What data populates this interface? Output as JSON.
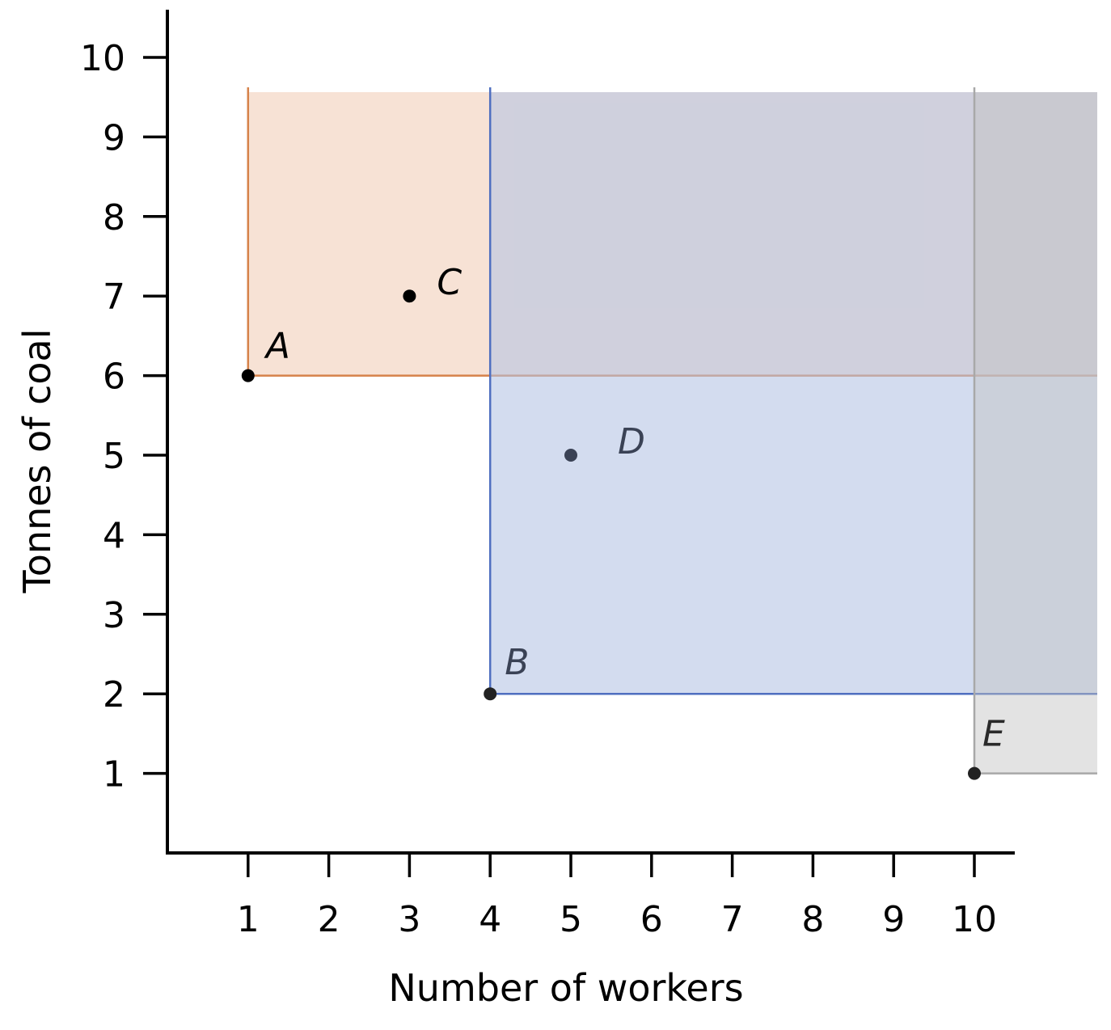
{
  "chart_data": {
    "type": "scatter",
    "title": "",
    "xlabel": "Number of workers",
    "ylabel": "Tonnes of coal",
    "xlim": [
      0,
      10.5
    ],
    "ylim": [
      0,
      10.6
    ],
    "x_ticks": [
      1,
      2,
      3,
      4,
      5,
      6,
      7,
      8,
      9,
      10
    ],
    "y_ticks": [
      1,
      2,
      3,
      4,
      5,
      6,
      7,
      8,
      9,
      10
    ],
    "grid": false,
    "points": [
      {
        "label": "A",
        "x": 1,
        "y": 6,
        "color": "#000000",
        "label_color": "#000000"
      },
      {
        "label": "B",
        "x": 4,
        "y": 2,
        "color": "#222222",
        "label_color": "#3a4255"
      },
      {
        "label": "C",
        "x": 3,
        "y": 7,
        "color": "#000000",
        "label_color": "#000000"
      },
      {
        "label": "D",
        "x": 5,
        "y": 5,
        "color": "#3a4255",
        "label_color": "#3a4255"
      },
      {
        "label": "E",
        "x": 10,
        "y": 1,
        "color": "#222222",
        "label_color": "#2a2a2a"
      }
    ],
    "dominance_regions": [
      {
        "corner": "A",
        "x_from": 1,
        "y_from": 6,
        "fill": "#f2d3bf",
        "line": "#d6824a",
        "opacity": 0.65
      },
      {
        "corner": "B",
        "x_from": 4,
        "y_from": 2,
        "fill": "#b3c3e3",
        "line": "#4f6fc0",
        "opacity": 0.58
      },
      {
        "corner": "E",
        "x_from": 10,
        "y_from": 1,
        "fill": "#c2c2c2",
        "line": "#a8a8a8",
        "opacity": 0.45
      }
    ]
  }
}
